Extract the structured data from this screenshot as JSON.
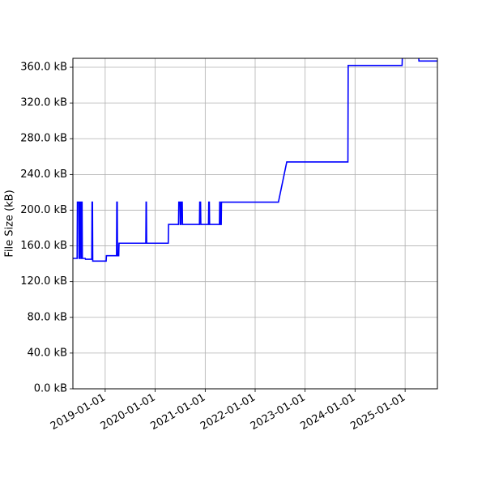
{
  "chart_data": {
    "type": "line",
    "title": "",
    "xlabel": "",
    "ylabel": "File Size (kB)",
    "grid": true,
    "line_color": "#0000ff",
    "xlim": [
      "2018-05-10",
      "2025-08-25"
    ],
    "ylim": [
      0,
      370
    ],
    "x_ticks": [
      "2019-01-01",
      "2020-01-01",
      "2021-01-01",
      "2022-01-01",
      "2023-01-01",
      "2024-01-01",
      "2025-01-01"
    ],
    "y_ticks": [
      {
        "value": 0,
        "label": "0.0 kB"
      },
      {
        "value": 40,
        "label": "40.0 kB"
      },
      {
        "value": 80,
        "label": "80.0 kB"
      },
      {
        "value": 120,
        "label": "120.0 kB"
      },
      {
        "value": 160,
        "label": "160.0 kB"
      },
      {
        "value": 200,
        "label": "200.0 kB"
      },
      {
        "value": 240,
        "label": "240.0 kB"
      },
      {
        "value": 280,
        "label": "280.0 kB"
      },
      {
        "value": 320,
        "label": "320.0 kB"
      },
      {
        "value": 360,
        "label": "360.0 kB"
      }
    ],
    "series": [
      {
        "points": [
          [
            "2018-05-10",
            146
          ],
          [
            "2018-06-10",
            146
          ],
          [
            "2018-06-12",
            209
          ],
          [
            "2018-06-22",
            209
          ],
          [
            "2018-06-24",
            146
          ],
          [
            "2018-06-28",
            146
          ],
          [
            "2018-06-30",
            209
          ],
          [
            "2018-07-06",
            209
          ],
          [
            "2018-07-08",
            146
          ],
          [
            "2018-07-10",
            146
          ],
          [
            "2018-07-12",
            209
          ],
          [
            "2018-07-16",
            209
          ],
          [
            "2018-07-18",
            146
          ],
          [
            "2018-08-08",
            146
          ],
          [
            "2018-08-10",
            145
          ],
          [
            "2018-09-25",
            145
          ],
          [
            "2018-09-27",
            209
          ],
          [
            "2018-09-30",
            209
          ],
          [
            "2018-10-02",
            143
          ],
          [
            "2019-01-08",
            143
          ],
          [
            "2019-01-10",
            149
          ],
          [
            "2019-03-25",
            149
          ],
          [
            "2019-03-27",
            209
          ],
          [
            "2019-03-30",
            209
          ],
          [
            "2019-04-01",
            149
          ],
          [
            "2019-04-10",
            149
          ],
          [
            "2019-04-12",
            163
          ],
          [
            "2019-10-25",
            163
          ],
          [
            "2019-10-27",
            209
          ],
          [
            "2019-10-29",
            209
          ],
          [
            "2019-10-31",
            163
          ],
          [
            "2020-04-06",
            163
          ],
          [
            "2020-04-08",
            184
          ],
          [
            "2020-06-20",
            184
          ],
          [
            "2020-06-22",
            209
          ],
          [
            "2020-07-01",
            209
          ],
          [
            "2020-07-03",
            184
          ],
          [
            "2020-07-08",
            184
          ],
          [
            "2020-07-10",
            209
          ],
          [
            "2020-07-17",
            209
          ],
          [
            "2020-07-19",
            184
          ],
          [
            "2020-11-20",
            184
          ],
          [
            "2020-11-22",
            209
          ],
          [
            "2020-11-28",
            209
          ],
          [
            "2020-11-30",
            184
          ],
          [
            "2021-01-25",
            184
          ],
          [
            "2021-01-27",
            209
          ],
          [
            "2021-01-31",
            209
          ],
          [
            "2021-02-02",
            184
          ],
          [
            "2021-04-15",
            184
          ],
          [
            "2021-04-17",
            209
          ],
          [
            "2021-04-20",
            209
          ],
          [
            "2021-04-22",
            184
          ],
          [
            "2021-04-28",
            184
          ],
          [
            "2021-04-30",
            209
          ],
          [
            "2022-06-20",
            209
          ],
          [
            "2022-08-20",
            254
          ],
          [
            "2023-11-10",
            254
          ],
          [
            "2023-11-12",
            362
          ],
          [
            "2024-12-10",
            362
          ],
          [
            "2024-12-12",
            373
          ],
          [
            "2025-04-10",
            373
          ],
          [
            "2025-04-12",
            367
          ],
          [
            "2025-08-25",
            367
          ]
        ]
      }
    ]
  }
}
